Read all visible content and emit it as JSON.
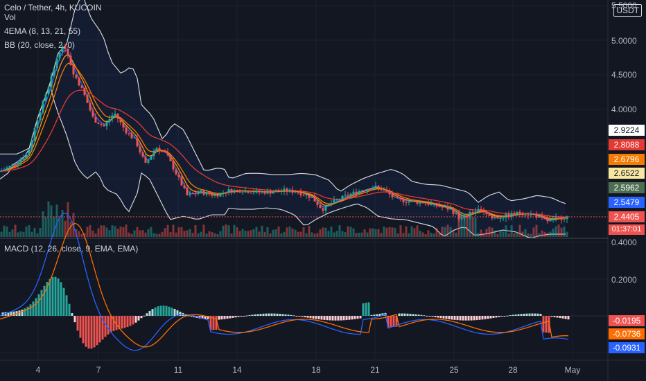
{
  "header": {
    "symbol": "Celo / Tether, 4h, KUCOIN",
    "vol_label": "Vol",
    "ema_label": "4EMA (8, 13, 21, 55)",
    "bb_label": "BB (20, close, 2, 0)",
    "macd_label": "MACD (12, 26, close, 9, EMA, EMA)",
    "currency": "USDT"
  },
  "colors": {
    "background": "#131722",
    "up": "#26a69a",
    "down": "#ef5350",
    "grid": "#1e222d",
    "bb": "#d1d4dc",
    "ema8": "#2962ff",
    "ema13": "#ff9800",
    "ema21": "#f57c00",
    "ema55": "#e53935",
    "macd": "#2962ff",
    "signal": "#ff6d00"
  },
  "price_axis_labels": [
    "5.5000",
    "5.0000",
    "4.5000",
    "4.0000"
  ],
  "macd_axis_labels": [
    "0.4000",
    "0.2000"
  ],
  "time_axis_labels": [
    "4",
    "7",
    "11",
    "14",
    "18",
    "21",
    "25",
    "28",
    "May"
  ],
  "price_tags": [
    {
      "value": "2.9224",
      "bg": "#ffffff",
      "fg": "#131722"
    },
    {
      "value": "2.8088",
      "bg": "#e53935",
      "fg": "#ffffff"
    },
    {
      "value": "2.6796",
      "bg": "#f57c00",
      "fg": "#ffffff"
    },
    {
      "value": "2.6522",
      "bg": "#f9e79f",
      "fg": "#131722"
    },
    {
      "value": "2.5962",
      "bg": "#4e6e52",
      "fg": "#ffffff"
    },
    {
      "value": "2.5479",
      "bg": "#2962ff",
      "fg": "#ffffff"
    },
    {
      "value": "2.4405",
      "bg": "#ef5350",
      "fg": "#ffffff"
    }
  ],
  "countdown": "01:37:01",
  "macd_tags": [
    {
      "value": "-0.0195",
      "bg": "#ef5350",
      "fg": "#ffffff"
    },
    {
      "value": "-0.0736",
      "bg": "#ff6d00",
      "fg": "#ffffff"
    },
    {
      "value": "-0.0931",
      "bg": "#2962ff",
      "fg": "#ffffff"
    }
  ],
  "chart_data": {
    "type": "candlestick",
    "x_labels": [
      "4",
      "7",
      "11",
      "14",
      "18",
      "21",
      "25",
      "28",
      "May"
    ],
    "price_range": [
      2.3,
      5.6
    ],
    "close_path": [
      {
        "x": 0,
        "y": 3.1
      },
      {
        "x": 20,
        "y": 3.2
      },
      {
        "x": 40,
        "y": 3.35
      },
      {
        "x": 55,
        "y": 3.9
      },
      {
        "x": 70,
        "y": 4.3
      },
      {
        "x": 85,
        "y": 4.85
      },
      {
        "x": 95,
        "y": 4.9
      },
      {
        "x": 105,
        "y": 4.55
      },
      {
        "x": 120,
        "y": 4.25
      },
      {
        "x": 135,
        "y": 3.85
      },
      {
        "x": 150,
        "y": 3.75
      },
      {
        "x": 165,
        "y": 3.95
      },
      {
        "x": 180,
        "y": 3.7
      },
      {
        "x": 195,
        "y": 3.55
      },
      {
        "x": 210,
        "y": 3.2
      },
      {
        "x": 225,
        "y": 3.45
      },
      {
        "x": 240,
        "y": 3.35
      },
      {
        "x": 255,
        "y": 3.05
      },
      {
        "x": 270,
        "y": 2.75
      },
      {
        "x": 290,
        "y": 2.8
      },
      {
        "x": 310,
        "y": 2.75
      },
      {
        "x": 330,
        "y": 2.82
      },
      {
        "x": 350,
        "y": 2.82
      },
      {
        "x": 370,
        "y": 2.8
      },
      {
        "x": 390,
        "y": 2.8
      },
      {
        "x": 410,
        "y": 2.82
      },
      {
        "x": 430,
        "y": 2.8
      },
      {
        "x": 450,
        "y": 2.72
      },
      {
        "x": 465,
        "y": 2.55
      },
      {
        "x": 480,
        "y": 2.65
      },
      {
        "x": 500,
        "y": 2.75
      },
      {
        "x": 520,
        "y": 2.82
      },
      {
        "x": 540,
        "y": 2.88
      },
      {
        "x": 555,
        "y": 2.82
      },
      {
        "x": 570,
        "y": 2.7
      },
      {
        "x": 590,
        "y": 2.66
      },
      {
        "x": 610,
        "y": 2.65
      },
      {
        "x": 630,
        "y": 2.6
      },
      {
        "x": 650,
        "y": 2.55
      },
      {
        "x": 665,
        "y": 2.4
      },
      {
        "x": 680,
        "y": 2.5
      },
      {
        "x": 695,
        "y": 2.55
      },
      {
        "x": 710,
        "y": 2.42
      },
      {
        "x": 730,
        "y": 2.45
      },
      {
        "x": 750,
        "y": 2.5
      },
      {
        "x": 770,
        "y": 2.47
      },
      {
        "x": 790,
        "y": 2.38
      },
      {
        "x": 805,
        "y": 2.42
      },
      {
        "x": 818,
        "y": 2.44
      }
    ],
    "last_price": 2.4405,
    "macd": {
      "macd": -0.0931,
      "signal": -0.0736,
      "histogram": -0.0195,
      "range": [
        -0.12,
        0.42
      ]
    }
  }
}
